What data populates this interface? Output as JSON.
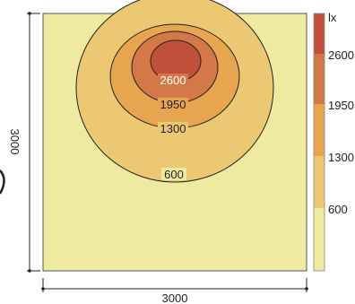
{
  "chart_data": {
    "type": "heatmap",
    "unit": "lx",
    "dimensions": {
      "width_label": "3000",
      "depth_label": "3000"
    },
    "contours": [
      {
        "level": 2600,
        "label": "2600"
      },
      {
        "level": 1950,
        "label": "1950"
      },
      {
        "level": 1300,
        "label": "1300"
      },
      {
        "level": 600,
        "label": "600"
      }
    ],
    "legend": {
      "unit_label": "lx",
      "ticks": [
        "2600",
        "1950",
        "1300",
        "600"
      ],
      "bands": [
        {
          "from": 2600,
          "to": null,
          "color": "#c0503a"
        },
        {
          "from": 1950,
          "to": 2600,
          "color": "#d47848"
        },
        {
          "from": 1300,
          "to": 1950,
          "color": "#e8a54f"
        },
        {
          "from": 600,
          "to": 1300,
          "color": "#ecc873"
        },
        {
          "from": 0,
          "to": 600,
          "color": "#eeeaa0"
        }
      ]
    },
    "colors": {
      "l600": "#eeeaa0",
      "l1300": "#ecc873",
      "l1950": "#e8a54f",
      "l2600": "#d47848",
      "peak": "#c0503a"
    }
  }
}
